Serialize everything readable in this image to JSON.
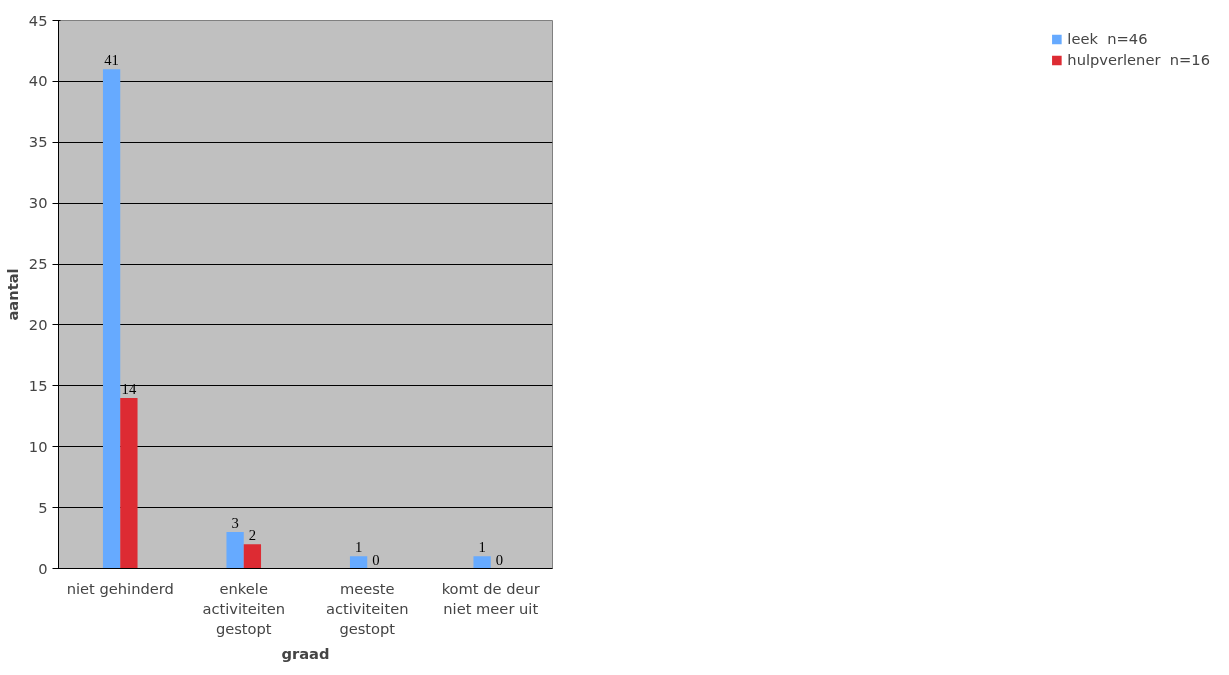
{
  "chart_data": {
    "type": "bar",
    "xlabel": "graad",
    "ylabel": "aantal",
    "categories": [
      "niet gehinderd",
      "enkele activiteiten gestopt",
      "meeste activiteiten gestopt",
      "komt de deur niet meer uit"
    ],
    "series": [
      {
        "name": "leek  n=46",
        "color": "#66aaff",
        "values": [
          41,
          3,
          1,
          1
        ]
      },
      {
        "name": "hulpverlener  n=16",
        "color": "#dd2b33",
        "values": [
          14,
          2,
          0,
          0
        ]
      }
    ],
    "ylim": [
      0,
      45
    ],
    "yticks": [
      0,
      5,
      10,
      15,
      20,
      25,
      30,
      35,
      40,
      45
    ],
    "grid": "y",
    "legend": "right",
    "data_labels": true
  }
}
